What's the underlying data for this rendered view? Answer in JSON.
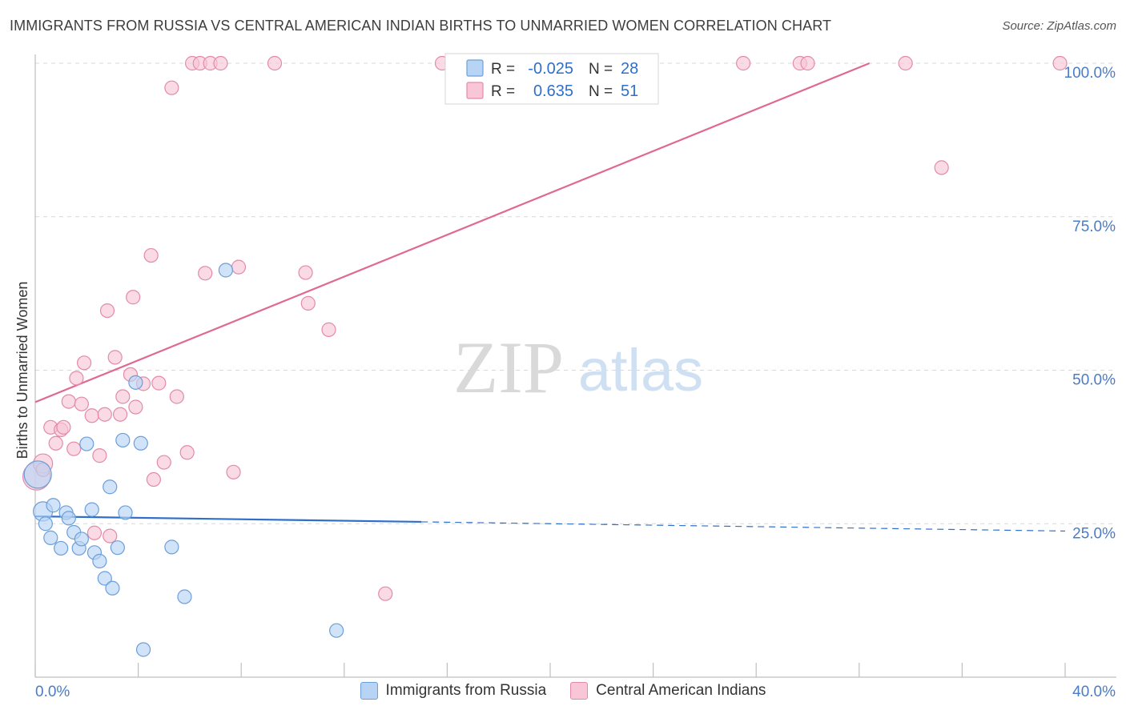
{
  "header": {
    "title": "IMMIGRANTS FROM RUSSIA VS CENTRAL AMERICAN INDIAN BIRTHS TO UNMARRIED WOMEN CORRELATION CHART",
    "source": "Source: ZipAtlas.com"
  },
  "watermark": {
    "zip": "ZIP",
    "atlas": "atlas"
  },
  "legend_box": {
    "rows": [
      {
        "r_label": "R = ",
        "r_value": "-0.025",
        "n_label": "N = ",
        "n_value": "28"
      },
      {
        "r_label": "R = ",
        "r_value": " 0.635",
        "n_label": "N = ",
        "n_value": "51"
      }
    ]
  },
  "colors": {
    "blue_fill": "#b8d4f4",
    "blue_stroke": "#6c9fd8",
    "blue_line": "#2f6fcc",
    "pink_fill": "#f8c6d6",
    "pink_stroke": "#e48aa9",
    "pink_line": "#e0698f",
    "tick_label": "#4a7cc7",
    "grid": "#d8d8d8"
  },
  "chart_data": {
    "type": "scatter",
    "title": "IMMIGRANTS FROM RUSSIA VS CENTRAL AMERICAN INDIAN BIRTHS TO UNMARRIED WOMEN CORRELATION CHART",
    "xlabel": "",
    "ylabel": "Births to Unmarried Women",
    "xlim": [
      0,
      40
    ],
    "ylim": [
      0,
      100
    ],
    "x_tick_labels": [
      "0.0%",
      "40.0%"
    ],
    "y_ticks": [
      25,
      50,
      75,
      100
    ],
    "y_tick_labels": [
      "25.0%",
      "50.0%",
      "75.0%",
      "100.0%"
    ],
    "grid": true,
    "legend_position": "top-center",
    "series": [
      {
        "name": "Immigrants from Russia",
        "color": "#b8d4f4",
        "r": "-0.025",
        "n": "28",
        "trend": {
          "start": [
            0,
            26.2
          ],
          "end": [
            40,
            23.8
          ],
          "solid_until": 15
        },
        "points": [
          [
            0.1,
            33.0,
            "large"
          ],
          [
            0.3,
            27.0,
            "med"
          ],
          [
            0.4,
            25.0
          ],
          [
            0.6,
            22.7
          ],
          [
            0.7,
            28.0
          ],
          [
            1.0,
            21.0
          ],
          [
            1.2,
            26.8
          ],
          [
            1.3,
            25.9
          ],
          [
            1.5,
            23.6
          ],
          [
            1.7,
            21.0
          ],
          [
            1.8,
            22.5
          ],
          [
            2.0,
            38.0
          ],
          [
            2.2,
            27.3
          ],
          [
            2.3,
            20.3
          ],
          [
            2.5,
            18.9
          ],
          [
            2.7,
            16.1
          ],
          [
            2.9,
            31.0
          ],
          [
            3.0,
            14.5
          ],
          [
            3.2,
            21.1
          ],
          [
            3.4,
            38.6
          ],
          [
            3.5,
            26.8
          ],
          [
            3.9,
            48.0
          ],
          [
            4.1,
            38.1
          ],
          [
            4.2,
            4.5
          ],
          [
            5.3,
            21.2
          ],
          [
            5.8,
            13.1
          ],
          [
            7.4,
            66.3
          ],
          [
            11.7,
            7.6
          ]
        ]
      },
      {
        "name": "Central American Indians",
        "color": "#f8c6d6",
        "r": "0.635",
        "n": "51",
        "trend": {
          "start": [
            0,
            44.8
          ],
          "end": [
            32.4,
            100
          ]
        },
        "points": [
          [
            0.05,
            32.7,
            "large"
          ],
          [
            0.3,
            34.8,
            "med"
          ],
          [
            0.3,
            33.8
          ],
          [
            0.6,
            40.7
          ],
          [
            0.8,
            38.1
          ],
          [
            1.0,
            40.3
          ],
          [
            1.1,
            40.7
          ],
          [
            1.3,
            44.9
          ],
          [
            1.5,
            37.2
          ],
          [
            1.6,
            48.7
          ],
          [
            1.8,
            44.5
          ],
          [
            1.9,
            51.2
          ],
          [
            2.2,
            42.6
          ],
          [
            2.3,
            23.5
          ],
          [
            2.5,
            36.1
          ],
          [
            2.7,
            42.8
          ],
          [
            2.8,
            59.7
          ],
          [
            2.9,
            23.0
          ],
          [
            3.1,
            52.1
          ],
          [
            3.3,
            42.8
          ],
          [
            3.4,
            45.7
          ],
          [
            3.7,
            49.3
          ],
          [
            3.8,
            61.9
          ],
          [
            3.9,
            44.0
          ],
          [
            4.2,
            47.8
          ],
          [
            4.5,
            68.7
          ],
          [
            4.6,
            32.2
          ],
          [
            4.8,
            47.9
          ],
          [
            5.0,
            35.0
          ],
          [
            5.3,
            96.0
          ],
          [
            5.5,
            45.7
          ],
          [
            5.9,
            36.6
          ],
          [
            6.1,
            100.0
          ],
          [
            6.4,
            100.0
          ],
          [
            6.6,
            65.8
          ],
          [
            6.8,
            100.0
          ],
          [
            7.2,
            100.0
          ],
          [
            7.7,
            33.4
          ],
          [
            7.9,
            66.8
          ],
          [
            9.3,
            100.0
          ],
          [
            10.5,
            65.9
          ],
          [
            10.6,
            60.9
          ],
          [
            11.4,
            56.6
          ],
          [
            13.6,
            13.6
          ],
          [
            15.8,
            100.0
          ],
          [
            27.5,
            100.0
          ],
          [
            29.7,
            100.0
          ],
          [
            30.0,
            100.0
          ],
          [
            33.8,
            100.0
          ],
          [
            35.2,
            83.0
          ],
          [
            39.8,
            100.0
          ]
        ]
      }
    ]
  }
}
